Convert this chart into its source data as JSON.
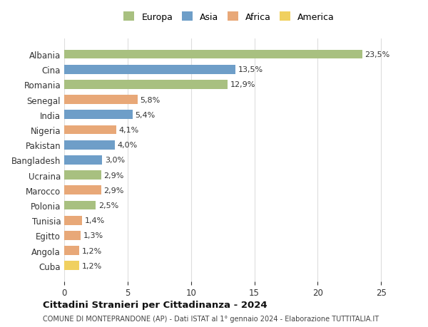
{
  "categories": [
    "Albania",
    "Cina",
    "Romania",
    "Senegal",
    "India",
    "Nigeria",
    "Pakistan",
    "Bangladesh",
    "Ucraina",
    "Marocco",
    "Polonia",
    "Tunisia",
    "Egitto",
    "Angola",
    "Cuba"
  ],
  "values": [
    23.5,
    13.5,
    12.9,
    5.8,
    5.4,
    4.1,
    4.0,
    3.0,
    2.9,
    2.9,
    2.5,
    1.4,
    1.3,
    1.2,
    1.2
  ],
  "labels": [
    "23,5%",
    "13,5%",
    "12,9%",
    "5,8%",
    "5,4%",
    "4,1%",
    "4,0%",
    "3,0%",
    "2,9%",
    "2,9%",
    "2,5%",
    "1,4%",
    "1,3%",
    "1,2%",
    "1,2%"
  ],
  "colors": [
    "#a8c080",
    "#6e9ec8",
    "#a8c080",
    "#e8a878",
    "#6e9ec8",
    "#e8a878",
    "#6e9ec8",
    "#6e9ec8",
    "#a8c080",
    "#e8a878",
    "#a8c080",
    "#e8a878",
    "#e8a878",
    "#e8a878",
    "#f0d060"
  ],
  "legend_labels": [
    "Europa",
    "Asia",
    "Africa",
    "America"
  ],
  "legend_colors": [
    "#a8c080",
    "#6e9ec8",
    "#e8a878",
    "#f0d060"
  ],
  "title": "Cittadini Stranieri per Cittadinanza - 2024",
  "subtitle": "COMUNE DI MONTEPRANDONE (AP) - Dati ISTAT al 1° gennaio 2024 - Elaborazione TUTTITALIA.IT",
  "xlim": [
    0,
    26
  ],
  "xticks": [
    0,
    5,
    10,
    15,
    20,
    25
  ],
  "background_color": "#ffffff",
  "grid_color": "#dddddd",
  "bar_height": 0.6
}
